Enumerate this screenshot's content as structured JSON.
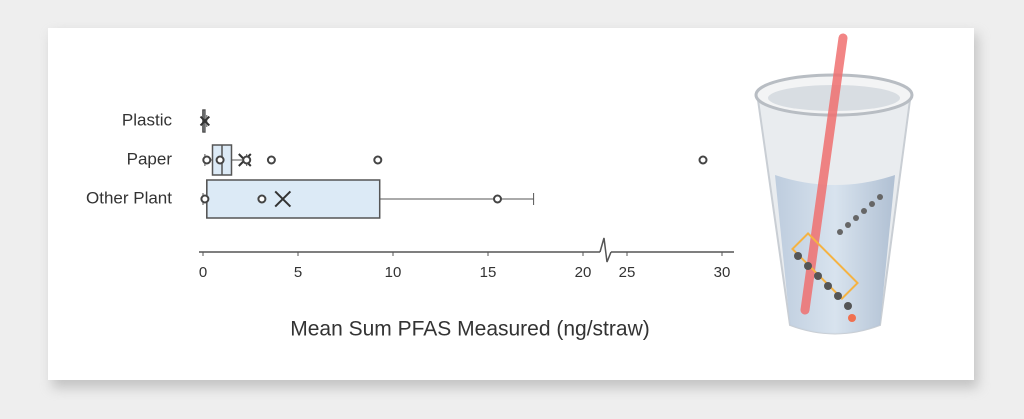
{
  "chart_data": {
    "type": "box",
    "orientation": "horizontal",
    "xlabel": "Mean Sum PFAS Measured  (ng/straw)",
    "categories": [
      "Plastic",
      "Paper",
      "Other Plant"
    ],
    "boxes": [
      {
        "min": 0,
        "q1": 0,
        "median": 0,
        "q3": 0.1,
        "max": 0.2,
        "mean": 0.1,
        "points": []
      },
      {
        "min": 0.1,
        "q1": 0.5,
        "median": 1.0,
        "q3": 1.5,
        "max": 2.3,
        "mean": 2.2,
        "points": [
          0.2,
          0.9,
          2.3,
          3.6,
          9.2,
          29.0
        ]
      },
      {
        "min": 0,
        "q1": 0.2,
        "median": 0.2,
        "q3": 9.3,
        "max": 17.4,
        "mean": 4.2,
        "points": [
          0.1,
          3.1,
          15.5
        ]
      }
    ],
    "color": "#dceaf6",
    "xlim": [
      0,
      30
    ],
    "xbreak": [
      21,
      24
    ],
    "xticks": [
      0,
      5,
      10,
      15,
      20,
      25,
      30
    ]
  }
}
